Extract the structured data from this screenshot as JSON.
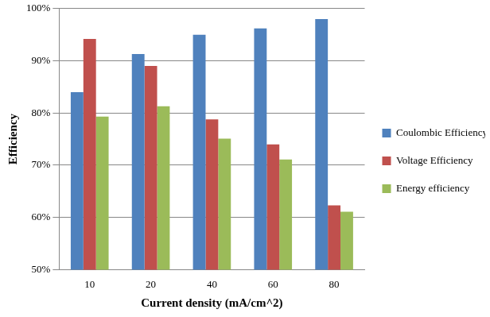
{
  "chart_data": {
    "type": "bar",
    "x_label": "Current density (mA/cm^2)",
    "y_label": "Efficiency",
    "categories": [
      "10",
      "20",
      "40",
      "60",
      "80"
    ],
    "series": [
      {
        "name": "Coulombic Efficiency",
        "color": "#4f81bd",
        "values": [
          84,
          91.3,
          95,
          96.2,
          98
        ]
      },
      {
        "name": "Voltage Efficiency",
        "color": "#c0504d",
        "values": [
          94.2,
          89,
          78.8,
          74,
          62.3
        ]
      },
      {
        "name": "Energy efficiency",
        "color": "#9bbb59",
        "values": [
          79.3,
          81.3,
          75.1,
          71.1,
          61.1
        ]
      }
    ],
    "ylim": [
      50,
      100
    ],
    "yticks": [
      {
        "value": 50,
        "label": "50%"
      },
      {
        "value": 60,
        "label": "60%"
      },
      {
        "value": 70,
        "label": "70%"
      },
      {
        "value": 80,
        "label": "80%"
      },
      {
        "value": 90,
        "label": "90%"
      },
      {
        "value": 100,
        "label": "100%"
      }
    ],
    "grid": true,
    "legend": "right"
  }
}
